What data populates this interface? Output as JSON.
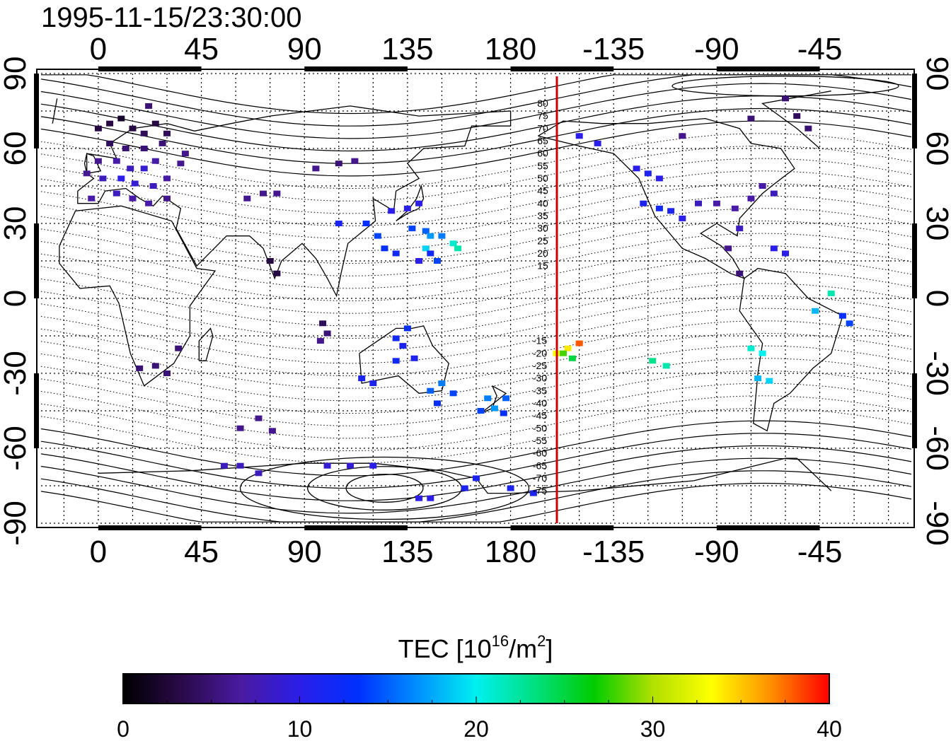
{
  "timestamp": "1995-11-15/23:30:00",
  "map": {
    "x_axis_labels": [
      "0",
      "45",
      "90",
      "135",
      "180",
      "-135",
      "-90",
      "-45"
    ],
    "y_axis_labels_left": [
      "90",
      "60",
      "30",
      "0",
      "-30",
      "-60",
      "-90"
    ],
    "y_axis_labels_right": [
      "90",
      "60",
      "30",
      "0",
      "-30",
      "-60",
      "-90"
    ],
    "lon_range": [
      -25,
      355
    ],
    "lat_range": [
      -90,
      90
    ],
    "gridlines": true,
    "gridline_style": "dotted",
    "terminator_line_color": "#cc0000",
    "contour_labels_north": [
      "80",
      "75",
      "70",
      "65",
      "60",
      "55",
      "50",
      "45",
      "40",
      "35",
      "30",
      "25",
      "20",
      "15"
    ],
    "contour_labels_south": [
      "-15",
      "-20",
      "-25",
      "-30",
      "-35",
      "-40",
      "-45",
      "-50",
      "-55",
      "-60",
      "-65",
      "-70",
      "-75"
    ]
  },
  "colorbar": {
    "title": "TEC  [10",
    "title_superscript": "16",
    "title_suffix": "/m",
    "title_suffix_superscript": "2",
    "title_end": "]",
    "tick_labels": [
      "0",
      "10",
      "20",
      "30",
      "40"
    ],
    "range": [
      0,
      40
    ],
    "colors": [
      "#000000",
      "#2a0a4a",
      "#4a1aa0",
      "#2a1ee8",
      "#0030ff",
      "#0090ff",
      "#00f0f0",
      "#00e080",
      "#00cc00",
      "#b0e000",
      "#ffff00",
      "#ff9000",
      "#ff0000"
    ]
  },
  "chart_data": {
    "type": "scatter",
    "title": "1995-11-15/23:30:00",
    "xlabel": "",
    "ylabel": "",
    "colorbar_label": "TEC [10^16/m^2]",
    "xlim": [
      -25,
      355
    ],
    "ylim": [
      -90,
      90
    ],
    "grid": true,
    "series": [
      {
        "points": [
          {
            "lon": 0,
            "lat": 68,
            "tec": 3
          },
          {
            "lon": 5,
            "lat": 70,
            "tec": 3
          },
          {
            "lon": 10,
            "lat": 72,
            "tec": 2
          },
          {
            "lon": 15,
            "lat": 68,
            "tec": 3
          },
          {
            "lon": 20,
            "lat": 66,
            "tec": 4
          },
          {
            "lon": 25,
            "lat": 70,
            "tec": 3
          },
          {
            "lon": 30,
            "lat": 66,
            "tec": 4
          },
          {
            "lon": 5,
            "lat": 62,
            "tec": 4
          },
          {
            "lon": 12,
            "lat": 60,
            "tec": 5
          },
          {
            "lon": 20,
            "lat": 60,
            "tec": 5
          },
          {
            "lon": 28,
            "lat": 62,
            "tec": 5
          },
          {
            "lon": 0,
            "lat": 55,
            "tec": 6
          },
          {
            "lon": 8,
            "lat": 55,
            "tec": 7
          },
          {
            "lon": 14,
            "lat": 52,
            "tec": 8
          },
          {
            "lon": 20,
            "lat": 52,
            "tec": 9
          },
          {
            "lon": 25,
            "lat": 55,
            "tec": 7
          },
          {
            "lon": -5,
            "lat": 50,
            "tec": 6
          },
          {
            "lon": 2,
            "lat": 48,
            "tec": 8
          },
          {
            "lon": 10,
            "lat": 48,
            "tec": 10
          },
          {
            "lon": 16,
            "lat": 46,
            "tec": 9
          },
          {
            "lon": 24,
            "lat": 45,
            "tec": 8
          },
          {
            "lon": 30,
            "lat": 48,
            "tec": 7
          },
          {
            "lon": -3,
            "lat": 40,
            "tec": 7
          },
          {
            "lon": 8,
            "lat": 42,
            "tec": 8
          },
          {
            "lon": 15,
            "lat": 40,
            "tec": 7
          },
          {
            "lon": 22,
            "lat": 38,
            "tec": 7
          },
          {
            "lon": 30,
            "lat": 40,
            "tec": 6
          },
          {
            "lon": 36,
            "lat": 54,
            "tec": 6
          },
          {
            "lon": 38,
            "lat": 58,
            "tec": 6
          },
          {
            "lon": 22,
            "lat": 77,
            "tec": 5
          },
          {
            "lon": 95,
            "lat": 52,
            "tec": 6
          },
          {
            "lon": 105,
            "lat": 54,
            "tec": 5
          },
          {
            "lon": 112,
            "lat": 55,
            "tec": 6
          },
          {
            "lon": 65,
            "lat": 40,
            "tec": 6
          },
          {
            "lon": 72,
            "lat": 42,
            "tec": 6
          },
          {
            "lon": 78,
            "lat": 42,
            "tec": 6
          },
          {
            "lon": 75,
            "lat": 15,
            "tec": 3
          },
          {
            "lon": 78,
            "lat": 10,
            "tec": 3
          },
          {
            "lon": 105,
            "lat": 30,
            "tec": 11
          },
          {
            "lon": 117,
            "lat": 30,
            "tec": 13
          },
          {
            "lon": 122,
            "lat": 25,
            "tec": 14
          },
          {
            "lon": 128,
            "lat": 35,
            "tec": 10
          },
          {
            "lon": 135,
            "lat": 36,
            "tec": 10
          },
          {
            "lon": 140,
            "lat": 38,
            "tec": 10
          },
          {
            "lon": 125,
            "lat": 20,
            "tec": 13
          },
          {
            "lon": 130,
            "lat": 18,
            "tec": 12
          },
          {
            "lon": 137,
            "lat": 28,
            "tec": 14
          },
          {
            "lon": 143,
            "lat": 27,
            "tec": 15
          },
          {
            "lon": 145,
            "lat": 25,
            "tec": 17
          },
          {
            "lon": 150,
            "lat": 25,
            "tec": 16
          },
          {
            "lon": 155,
            "lat": 22,
            "tec": 21
          },
          {
            "lon": 157,
            "lat": 20,
            "tec": 22
          },
          {
            "lon": 143,
            "lat": 20,
            "tec": 19
          },
          {
            "lon": 145,
            "lat": 18,
            "tec": 12
          },
          {
            "lon": 148,
            "lat": 15,
            "tec": 14
          },
          {
            "lon": 140,
            "lat": 15,
            "tec": 10
          },
          {
            "lon": 98,
            "lat": -10,
            "tec": 4
          },
          {
            "lon": 100,
            "lat": -14,
            "tec": 5
          },
          {
            "lon": 97,
            "lat": -17,
            "tec": 6
          },
          {
            "lon": 135,
            "lat": -12,
            "tec": 13
          },
          {
            "lon": 130,
            "lat": -16,
            "tec": 12
          },
          {
            "lon": 133,
            "lat": -19,
            "tec": 11
          },
          {
            "lon": 138,
            "lat": -24,
            "tec": 11
          },
          {
            "lon": 130,
            "lat": -25,
            "tec": 12
          },
          {
            "lon": 115,
            "lat": -32,
            "tec": 11
          },
          {
            "lon": 120,
            "lat": -34,
            "tec": 11
          },
          {
            "lon": 145,
            "lat": -37,
            "tec": 15
          },
          {
            "lon": 150,
            "lat": -34,
            "tec": 16
          },
          {
            "lon": 148,
            "lat": -42,
            "tec": 13
          },
          {
            "lon": 155,
            "lat": -38,
            "tec": 14
          },
          {
            "lon": 170,
            "lat": -40,
            "tec": 16
          },
          {
            "lon": 173,
            "lat": -44,
            "tec": 17
          },
          {
            "lon": 167,
            "lat": -45,
            "tec": 14
          },
          {
            "lon": 178,
            "lat": -40,
            "tec": 15
          },
          {
            "lon": 177,
            "lat": -46,
            "tec": 13
          },
          {
            "lon": 35,
            "lat": -20,
            "tec": 5
          },
          {
            "lon": 25,
            "lat": -27,
            "tec": 5
          },
          {
            "lon": 30,
            "lat": -30,
            "tec": 5
          },
          {
            "lon": 18,
            "lat": -28,
            "tec": 5
          },
          {
            "lon": 70,
            "lat": -48,
            "tec": 6
          },
          {
            "lon": 62,
            "lat": -52,
            "tec": 6
          },
          {
            "lon": 76,
            "lat": -53,
            "tec": 6
          },
          {
            "lon": 55,
            "lat": -67,
            "tec": 8
          },
          {
            "lon": 62,
            "lat": -67,
            "tec": 8
          },
          {
            "lon": 70,
            "lat": -70,
            "tec": 8
          },
          {
            "lon": 100,
            "lat": -67,
            "tec": 9
          },
          {
            "lon": 110,
            "lat": -67,
            "tec": 9
          },
          {
            "lon": 120,
            "lat": -67,
            "tec": 10
          },
          {
            "lon": 140,
            "lat": -80,
            "tec": 10
          },
          {
            "lon": 145,
            "lat": -80,
            "tec": 10
          },
          {
            "lon": 165,
            "lat": -72,
            "tec": 11
          },
          {
            "lon": 160,
            "lat": -76,
            "tec": 11
          },
          {
            "lon": 180,
            "lat": -76,
            "tec": 11
          },
          {
            "lon": 190,
            "lat": -78,
            "tec": 11
          },
          {
            "lon": 205,
            "lat": -20,
            "tec": 34
          },
          {
            "lon": 210,
            "lat": -18,
            "tec": 38
          },
          {
            "lon": 200,
            "lat": -22,
            "tec": 33
          },
          {
            "lon": 207,
            "lat": -24,
            "tec": 25
          },
          {
            "lon": 203,
            "lat": -22,
            "tec": 28
          },
          {
            "lon": 242,
            "lat": -25,
            "tec": 23
          },
          {
            "lon": 248,
            "lat": -27,
            "tec": 22
          },
          {
            "lon": 285,
            "lat": -20,
            "tec": 21
          },
          {
            "lon": 290,
            "lat": -22,
            "tec": 20
          },
          {
            "lon": 288,
            "lat": -32,
            "tec": 18
          },
          {
            "lon": 293,
            "lat": -33,
            "tec": 19
          },
          {
            "lon": 313,
            "lat": -5,
            "tec": 18
          },
          {
            "lon": 320,
            "lat": 2,
            "tec": 22
          },
          {
            "lon": 325,
            "lat": -7,
            "tec": 13
          },
          {
            "lon": 328,
            "lat": -10,
            "tec": 14
          },
          {
            "lon": 218,
            "lat": 62,
            "tec": 10
          },
          {
            "lon": 210,
            "lat": 65,
            "tec": 10
          },
          {
            "lon": 235,
            "lat": 52,
            "tec": 10
          },
          {
            "lon": 240,
            "lat": 50,
            "tec": 11
          },
          {
            "lon": 245,
            "lat": 48,
            "tec": 10
          },
          {
            "lon": 238,
            "lat": 38,
            "tec": 11
          },
          {
            "lon": 245,
            "lat": 36,
            "tec": 12
          },
          {
            "lon": 250,
            "lat": 35,
            "tec": 11
          },
          {
            "lon": 255,
            "lat": 32,
            "tec": 10
          },
          {
            "lon": 262,
            "lat": 38,
            "tec": 8
          },
          {
            "lon": 270,
            "lat": 38,
            "tec": 7
          },
          {
            "lon": 278,
            "lat": 36,
            "tec": 7
          },
          {
            "lon": 285,
            "lat": 40,
            "tec": 7
          },
          {
            "lon": 290,
            "lat": 45,
            "tec": 7
          },
          {
            "lon": 295,
            "lat": 42,
            "tec": 8
          },
          {
            "lon": 280,
            "lat": 28,
            "tec": 8
          },
          {
            "lon": 275,
            "lat": 20,
            "tec": 6
          },
          {
            "lon": 280,
            "lat": 10,
            "tec": 5
          },
          {
            "lon": 295,
            "lat": 20,
            "tec": 10
          },
          {
            "lon": 300,
            "lat": 18,
            "tec": 10
          },
          {
            "lon": 255,
            "lat": 65,
            "tec": 6
          },
          {
            "lon": 285,
            "lat": 72,
            "tec": 5
          },
          {
            "lon": 305,
            "lat": 73,
            "tec": 4
          },
          {
            "lon": 310,
            "lat": 68,
            "tec": 5
          },
          {
            "lon": 300,
            "lat": 80,
            "tec": 5
          }
        ]
      }
    ]
  }
}
